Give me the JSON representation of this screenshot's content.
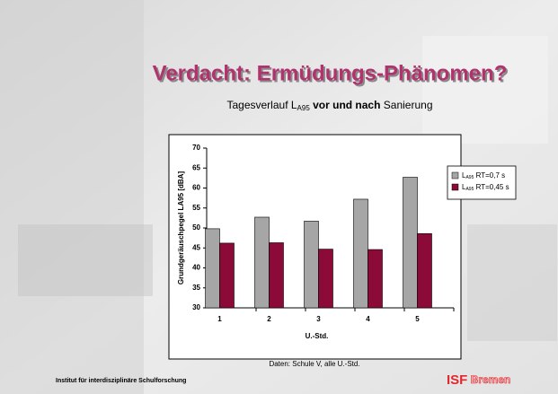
{
  "chart_data": {
    "type": "bar",
    "title": "Verdacht: Ermüdungs-Phänomen?",
    "subtitle": [
      "Tagesverlauf L",
      "A95",
      " vor und nach",
      " Sanierung"
    ],
    "y_label": "Grundgeräuschpegel LA95 [dBA]",
    "x_label": "U.-Std.",
    "categories": [
      "1",
      "2",
      "3",
      "4",
      "5"
    ],
    "series": [
      {
        "name": [
          "L",
          "A95",
          " RT=0,7 s"
        ],
        "color": "#a6a6a6",
        "values": [
          49.8,
          52.7,
          51.7,
          57.2,
          62.7
        ]
      },
      {
        "name": [
          "L",
          "A95",
          " RT=0,45 s"
        ],
        "color": "#8c0a38",
        "values": [
          46.2,
          46.3,
          44.7,
          44.6,
          48.6
        ]
      }
    ],
    "ylim": [
      30,
      70
    ],
    "yticks": [
      30,
      35,
      40,
      45,
      50,
      55,
      60,
      65,
      70
    ],
    "grid": false,
    "legend": "right",
    "source": "Daten: Schule V, alle U.-Std.",
    "institute": "Institut für interdisziplinäre Schulforschung",
    "logo": [
      "ISF",
      " Bremen"
    ]
  }
}
